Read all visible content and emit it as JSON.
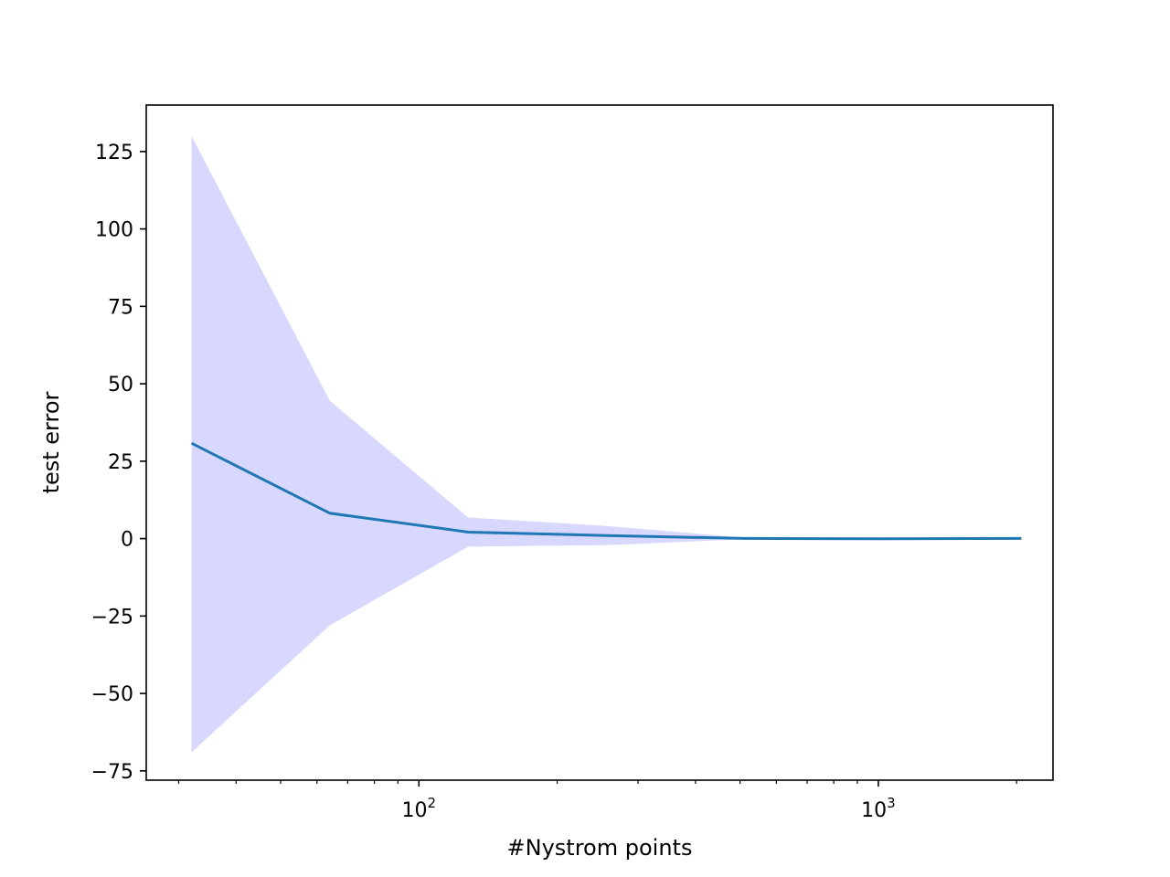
{
  "chart_data": {
    "type": "line",
    "title": "",
    "xlabel": "#Nystrom points",
    "ylabel": "test error",
    "x_scale": "log",
    "xlim": [
      25.5,
      2400
    ],
    "ylim": [
      -78,
      140
    ],
    "x_major_ticks": [
      {
        "value": 100,
        "base": "10",
        "exp": "2"
      },
      {
        "value": 1000,
        "base": "10",
        "exp": "3"
      }
    ],
    "x_minor_ticks": [
      30,
      40,
      50,
      60,
      70,
      80,
      90,
      200,
      300,
      400,
      500,
      600,
      700,
      800,
      900,
      2000
    ],
    "y_ticks": [
      {
        "value": 125,
        "label": "125"
      },
      {
        "value": 100,
        "label": "100"
      },
      {
        "value": 75,
        "label": "75"
      },
      {
        "value": 50,
        "label": "50"
      },
      {
        "value": 25,
        "label": "25"
      },
      {
        "value": 0,
        "label": "0"
      },
      {
        "value": -25,
        "label": "−25"
      },
      {
        "value": -50,
        "label": "−50"
      },
      {
        "value": -75,
        "label": "−75"
      }
    ],
    "grid": false,
    "legend": "none",
    "series": [
      {
        "x": [
          32,
          64,
          128,
          256,
          512,
          1024,
          2048
        ],
        "mean": [
          30.8,
          8.2,
          2.1,
          1.0,
          0.05,
          -0.05,
          0.05
        ],
        "upper": [
          130,
          44.5,
          6.8,
          4.1,
          0.3,
          0.05,
          0.1
        ],
        "lower": [
          -69,
          -28,
          -2.6,
          -2.1,
          -0.2,
          -0.15,
          0.0
        ],
        "line_color": "#1f77b4",
        "band_color": "#d8d8ff"
      }
    ]
  }
}
